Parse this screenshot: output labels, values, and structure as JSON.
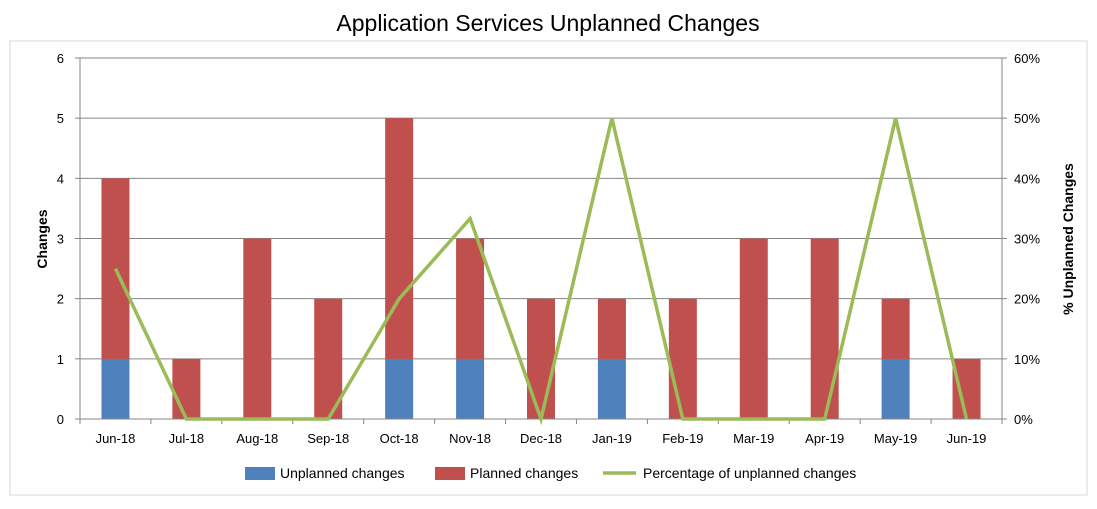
{
  "chart_data": {
    "type": "bar",
    "title": "Application Services Unplanned Changes",
    "categories": [
      "Jun-18",
      "Jul-18",
      "Aug-18",
      "Sep-18",
      "Oct-18",
      "Nov-18",
      "Dec-18",
      "Jan-19",
      "Feb-19",
      "Mar-19",
      "Apr-19",
      "May-19",
      "Jun-19"
    ],
    "series": [
      {
        "name": "Unplanned changes",
        "kind": "stacked-bar",
        "axis": "left",
        "color": "#4f81bd",
        "values": [
          1,
          0,
          0,
          0,
          1,
          1,
          0,
          1,
          0,
          0,
          0,
          1,
          0
        ]
      },
      {
        "name": "Planned changes",
        "kind": "stacked-bar",
        "axis": "left",
        "color": "#c0504d",
        "values": [
          3,
          1,
          3,
          2,
          4,
          2,
          2,
          1,
          2,
          3,
          3,
          1,
          1
        ]
      },
      {
        "name": "Percentage of unplanned changes",
        "kind": "line",
        "axis": "right",
        "color": "#9bbb59",
        "values": [
          25,
          0,
          0,
          0,
          20,
          33.3,
          0,
          50,
          0,
          0,
          0,
          50,
          0
        ]
      }
    ],
    "ylabel": "Changes",
    "ylabel_right": "% Unplanned Changes",
    "ylim": [
      0,
      6
    ],
    "ylim_right": [
      0,
      60
    ],
    "yticks": [
      "0",
      "1",
      "2",
      "3",
      "4",
      "5",
      "6"
    ],
    "yticks_right": [
      "0%",
      "10%",
      "20%",
      "30%",
      "40%",
      "50%",
      "60%"
    ],
    "grid": true,
    "legend_position": "bottom"
  }
}
